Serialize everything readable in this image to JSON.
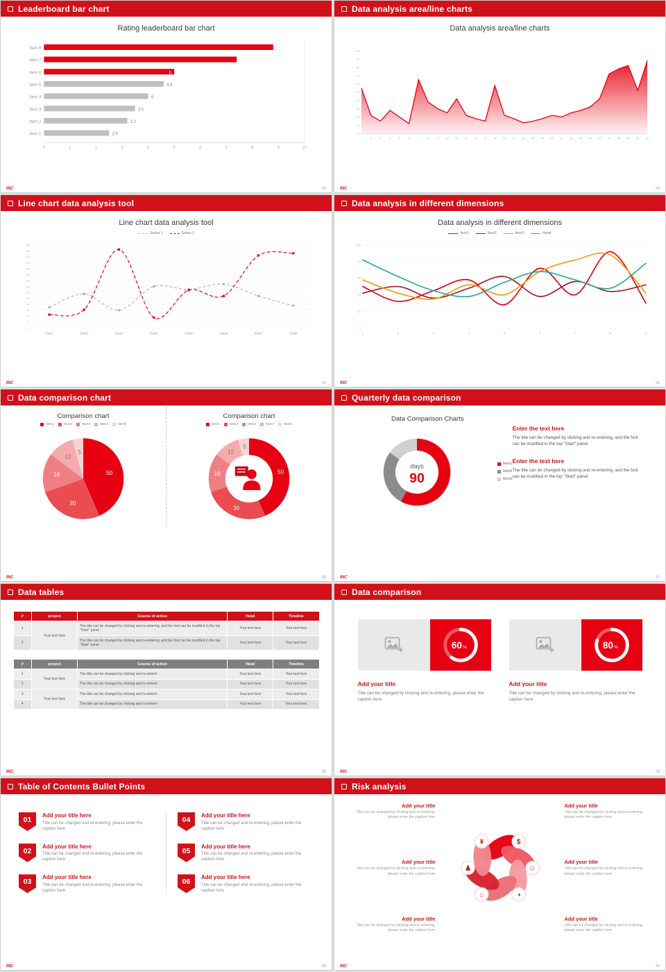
{
  "palette": {
    "header_red": "#d01119",
    "chart_red": "#e60012",
    "bar_gray": "#bfbfbf"
  },
  "footer_logo": "INC",
  "slides": [
    {
      "header": "Leaderboard bar chart",
      "page": "22",
      "title": "Rating leaderboard bar chart",
      "chart": {
        "type": "bar-h",
        "categories": [
          "Item 1",
          "Item 2",
          "Item 3",
          "Item 4",
          "Item 5",
          "Item 6",
          "Item 7",
          "Item 8"
        ],
        "values": [
          2.5,
          3.2,
          3.5,
          4,
          4.6,
          5,
          7.4,
          8.8
        ],
        "labels": [
          "2.5",
          "3.2",
          "3.5",
          "4",
          "4.6",
          "5",
          "",
          ""
        ],
        "colors": [
          "#bfbfbf",
          "#bfbfbf",
          "#bfbfbf",
          "#bfbfbf",
          "#bfbfbf",
          "#e60012",
          "#e60012",
          "#e60012"
        ],
        "xlim": [
          0,
          10
        ],
        "xticks": [
          0,
          1,
          2,
          3,
          4,
          5,
          6,
          7,
          8,
          9,
          10
        ]
      }
    },
    {
      "header": "Data analysis area/line charts",
      "page": "23",
      "title": "Data analysis area/line charts",
      "chart": {
        "type": "area",
        "color": "#e60012",
        "ylim": [
          0,
          100
        ],
        "yticks": [
          0,
          10,
          20,
          30,
          40,
          50,
          60,
          70,
          80,
          90,
          100
        ],
        "values": [
          55,
          22,
          15,
          28,
          20,
          12,
          65,
          38,
          30,
          25,
          42,
          22,
          18,
          15,
          58,
          22,
          18,
          13,
          15,
          18,
          22,
          20,
          25,
          28,
          32,
          42,
          72,
          78,
          82,
          52,
          88
        ]
      }
    },
    {
      "header": "Line chart data analysis tool",
      "page": "24",
      "title": "Line chart data analysis tool",
      "legend": [
        {
          "label": "Series 1",
          "color": "#b3b3b3"
        },
        {
          "label": "Series 2",
          "color": "#e60012"
        }
      ],
      "chart": {
        "type": "line",
        "categories": [
          "Data1",
          "Data2",
          "Data3",
          "Data4",
          "Data5",
          "Data6",
          "Data7",
          "Data8"
        ],
        "ylim": [
          0,
          280
        ],
        "ystep": 20,
        "series": [
          {
            "name": "Series 1",
            "color": "#b3b3b3",
            "dash": "4,3",
            "values": [
              70,
              115,
              60,
              140,
              130,
              148,
              108,
              75
            ]
          },
          {
            "name": "Series 2",
            "color": "#e60012",
            "dash": "5,3",
            "values": [
              45,
              62,
              265,
              35,
              128,
              108,
              245,
              252
            ]
          }
        ]
      }
    },
    {
      "header": "Data analysis in different dimensions",
      "page": "25",
      "title": "Data analysis in different dimensions",
      "legend": [
        {
          "label": "Item1",
          "color": "#e60012"
        },
        {
          "label": "Item2",
          "color": "#a61b29"
        },
        {
          "label": "Item3",
          "color": "#efa007"
        },
        {
          "label": "Item4",
          "color": "#2ba8a8"
        }
      ],
      "chart": {
        "type": "multiline",
        "x": [
          1,
          2,
          3,
          4,
          5,
          6,
          7,
          8,
          9
        ],
        "ylim": [
          0,
          100
        ],
        "yticks": [
          0,
          20,
          40,
          60,
          80,
          100
        ],
        "series": [
          {
            "name": "Item1",
            "color": "#e60012",
            "values": [
              50,
              32,
              45,
              58,
              28,
              72,
              40,
              92,
              30
            ]
          },
          {
            "name": "Item2",
            "color": "#a61b29",
            "values": [
              42,
              50,
              36,
              48,
              62,
              38,
              56,
              44,
              52
            ]
          },
          {
            "name": "Item3",
            "color": "#efa007",
            "values": [
              58,
              42,
              35,
              52,
              40,
              68,
              82,
              88,
              42
            ]
          },
          {
            "name": "Item4",
            "color": "#2ba8a8",
            "values": [
              82,
              62,
              45,
              38,
              55,
              68,
              58,
              48,
              78
            ]
          }
        ]
      }
    },
    {
      "header": "Data comparison chart",
      "page": "26",
      "charts": [
        {
          "title": "Comparison chart",
          "legend": [
            {
              "label": "Item1",
              "color": "#e60012"
            },
            {
              "label": "Item2",
              "color": "#ea4c52"
            },
            {
              "label": "Item3",
              "color": "#f07f84"
            },
            {
              "label": "Item4",
              "color": "#f5abae"
            },
            {
              "label": "Item5",
              "color": "#fad2d4"
            }
          ],
          "chart": {
            "type": "pie",
            "values": [
              50,
              30,
              18,
              12,
              5
            ],
            "labels": [
              "50",
              "30",
              "18",
              "12",
              "5"
            ],
            "colors": [
              "#e60012",
              "#ea4c52",
              "#f07f84",
              "#f5abae",
              "#fad2d4"
            ]
          }
        },
        {
          "title": "Comparison chart",
          "legend": [
            {
              "label": "Item1",
              "color": "#e60012"
            },
            {
              "label": "Item2",
              "color": "#ea4c52"
            },
            {
              "label": "Item3",
              "color": "#f07f84"
            },
            {
              "label": "Item4",
              "color": "#f5abae"
            },
            {
              "label": "Item5",
              "color": "#fad2d4"
            }
          ],
          "chart": {
            "type": "pie",
            "donut": true,
            "icon": "presenter",
            "values": [
              50,
              30,
              18,
              12,
              5
            ],
            "labels": [
              "50",
              "30",
              "18",
              "12",
              "5"
            ],
            "colors": [
              "#e60012",
              "#ea4c52",
              "#f07f84",
              "#f5abae",
              "#fad2d4"
            ]
          }
        }
      ]
    },
    {
      "header": "Quarterly data comparison",
      "page": "27",
      "title": "Data Comparison Charts",
      "chart": {
        "type": "donut",
        "values": [
          58,
          27,
          15
        ],
        "colors": [
          "#e60012",
          "#8c8c8c",
          "#d0d0d0"
        ],
        "center_label": "days",
        "center_value": "90"
      },
      "legend": [
        {
          "label": "Item1",
          "color": "#e60012"
        },
        {
          "label": "Item2",
          "color": "#8c8c8c"
        },
        {
          "label": "Item3",
          "color": "#d0d0d0"
        }
      ],
      "blocks": [
        {
          "heading": "Enter the text here",
          "body": "The title can be changed by clicking and re-entering, and the font can be modified in the top \"Start\" panel"
        },
        {
          "heading": "Enter the text here",
          "body": "The title can be changed by clicking and re-entering, and the font can be modified in the top \"Start\" panel"
        }
      ]
    },
    {
      "header": "Data tables",
      "page": "28",
      "tableA": {
        "headers": [
          "#",
          "project",
          "Course of action",
          "Head",
          "Timeline"
        ],
        "project_label": "Your text here",
        "rows": [
          {
            "num": "1",
            "action": "The title can be changed by clicking and re-entering, and the font can be modified in the top \"Start\" panel",
            "head": "Your text here",
            "timeline": "Your text here"
          },
          {
            "num": "2",
            "action": "The title can be changed by clicking and re-entering, and the font can be modified in the top \"Start\" panel",
            "head": "Your text here",
            "timeline": "Your text here"
          }
        ]
      },
      "tableB": {
        "headers": [
          "#",
          "project",
          "Course of action",
          "Head",
          "Timeline"
        ],
        "project_label_1": "Your text here",
        "project_label_2": "Your text here",
        "rows": [
          {
            "num": "1",
            "action": "The title can be changed by clicking and re-enterin",
            "head": "Your text here",
            "timeline": "Your text here"
          },
          {
            "num": "2",
            "action": "The title can be changed by clicking and re-enterin",
            "head": "Your text here",
            "timeline": "Your text here"
          },
          {
            "num": "3",
            "action": "The title can be changed by clicking and re-enterin",
            "head": "Your text here",
            "timeline": "Your text here"
          },
          {
            "num": "4",
            "action": "The title can be changed by clicking and re-enterin",
            "head": "Your text here",
            "timeline": "Your text here"
          }
        ]
      }
    },
    {
      "header": "Data comparison",
      "page": "29",
      "cards": [
        {
          "title": "Add your title",
          "caption": "Title can be changed by clicking and re-entering, please enter the caption here",
          "ring": {
            "type": "ring",
            "percent": "60"
          }
        },
        {
          "title": "Add your title",
          "caption": "Title can be changed by clicking and re-entering, please enter the caption here",
          "ring": {
            "type": "ring",
            "percent": "80"
          }
        }
      ]
    },
    {
      "header": "Table of Contents Bullet Points",
      "page": "30",
      "items": [
        {
          "num": "01",
          "title": "Add your title here",
          "caption": "Title can be changed and re-entering, please enter the caption here"
        },
        {
          "num": "02",
          "title": "Add your title here",
          "caption": "Title can be changed and re-entering, please enter the caption here"
        },
        {
          "num": "03",
          "title": "Add your title here",
          "caption": "Title can be changed and re-entering, please enter the caption here"
        },
        {
          "num": "04",
          "title": "Add your title here",
          "caption": "Title can be changed and re-entering, please enter the caption here"
        },
        {
          "num": "05",
          "title": "Add your title here",
          "caption": "Title can be changed and re-entering, please enter the caption here"
        },
        {
          "num": "06",
          "title": "Add your title here",
          "caption": "Title can be changed and re-entering, please enter the caption here"
        }
      ]
    },
    {
      "header": "Risk analysis",
      "page": "31",
      "wheel": {
        "type": "pinwheel",
        "colors": [
          "#e60012",
          "#ef5a62",
          "#f59ba0",
          "#e97077",
          "#d9232e",
          "#f4858c"
        ],
        "icons": [
          {
            "name": "money-bag-icon",
            "glyph": "¥"
          },
          {
            "name": "coins-icon",
            "glyph": "$"
          },
          {
            "name": "lecturer-icon",
            "glyph": "♟"
          },
          {
            "name": "people-icon",
            "glyph": "☺"
          },
          {
            "name": "bank-icon",
            "glyph": "⌂"
          },
          {
            "name": "pie-chart-icon",
            "glyph": "◑"
          }
        ]
      },
      "blocks": [
        {
          "title": "Add your title",
          "caption": "Title can be changed by clicking and re-entering, please enter the caption here"
        },
        {
          "title": "Add your title",
          "caption": "Title can be changed by clicking and re-entering, please enter the caption here"
        },
        {
          "title": "Add your title",
          "caption": "Title can be changed by clicking and re-entering, please enter the caption here"
        },
        {
          "title": "Add your title",
          "caption": "Title can be changed by clicking and re-entering, please enter the caption here"
        },
        {
          "title": "Add your title",
          "caption": "Title can be changed by clicking and re-entering, please enter the caption here"
        },
        {
          "title": "Add your title",
          "caption": "Title can be changed by clicking and re-entering, please enter the caption here"
        }
      ]
    }
  ]
}
